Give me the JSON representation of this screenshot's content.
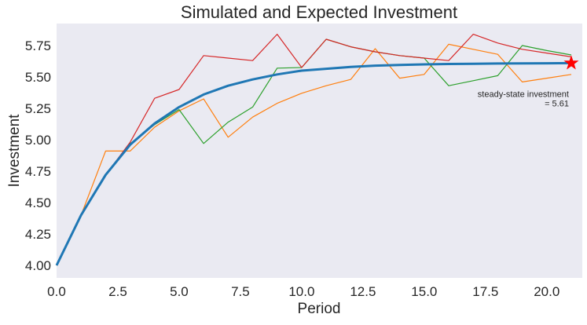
{
  "chart_data": {
    "type": "line",
    "title": "Simulated and Expected Investment",
    "xlabel": "Period",
    "ylabel": "Investment",
    "xlim": [
      0,
      21.45
    ],
    "ylim": [
      3.9,
      5.925
    ],
    "grid": false,
    "background": "#eaeaf2",
    "xticks": [
      0.0,
      2.5,
      5.0,
      7.5,
      10.0,
      12.5,
      15.0,
      17.5,
      20.0
    ],
    "xtick_labels": [
      "0.0",
      "2.5",
      "5.0",
      "7.5",
      "10.0",
      "12.5",
      "15.0",
      "17.5",
      "20.0"
    ],
    "yticks": [
      4.0,
      4.25,
      4.5,
      4.75,
      5.0,
      5.25,
      5.5,
      5.75
    ],
    "ytick_labels": [
      "4.00",
      "4.25",
      "4.50",
      "4.75",
      "5.00",
      "5.25",
      "5.50",
      "5.75"
    ],
    "x": [
      0,
      1,
      2,
      3,
      4,
      5,
      6,
      7,
      8,
      9,
      10,
      11,
      12,
      13,
      14,
      15,
      16,
      17,
      18,
      19,
      20,
      21
    ],
    "series": [
      {
        "color": "#ff7f0e",
        "width": 1.2,
        "values": [
          4.0,
          4.4,
          4.91,
          4.91,
          5.1,
          5.23,
          5.325,
          5.02,
          5.18,
          5.29,
          5.37,
          5.43,
          5.48,
          5.725,
          5.49,
          5.52,
          5.76,
          5.72,
          5.68,
          5.46,
          5.49,
          5.52
        ]
      },
      {
        "color": "#2ca02c",
        "width": 1.2,
        "values": [
          4.0,
          4.4,
          4.72,
          4.97,
          5.12,
          5.24,
          4.97,
          5.14,
          5.26,
          5.57,
          5.575,
          5.8,
          5.74,
          5.7,
          5.67,
          5.65,
          5.43,
          5.47,
          5.51,
          5.75,
          5.71,
          5.675
        ]
      },
      {
        "color": "#d62728",
        "width": 1.2,
        "values": [
          4.0,
          4.4,
          4.72,
          4.98,
          5.33,
          5.4,
          5.67,
          5.65,
          5.63,
          5.84,
          5.575,
          5.8,
          5.74,
          5.7,
          5.67,
          5.65,
          5.63,
          5.84,
          5.77,
          5.72,
          5.69,
          5.66
        ]
      },
      {
        "color": "#1f77b4",
        "width": 3,
        "values": [
          4.0,
          4.4,
          4.72,
          4.96,
          5.13,
          5.26,
          5.36,
          5.43,
          5.48,
          5.52,
          5.55,
          5.565,
          5.58,
          5.59,
          5.595,
          5.6,
          5.603,
          5.605,
          5.607,
          5.608,
          5.609,
          5.61
        ]
      }
    ],
    "marker": {
      "x": 21,
      "y": 5.61,
      "shape": "star",
      "color": "#ff0000"
    },
    "annotation": {
      "lines": [
        "steady-state investment",
        "= 5.61"
      ],
      "x": 21,
      "y": 5.34
    }
  }
}
